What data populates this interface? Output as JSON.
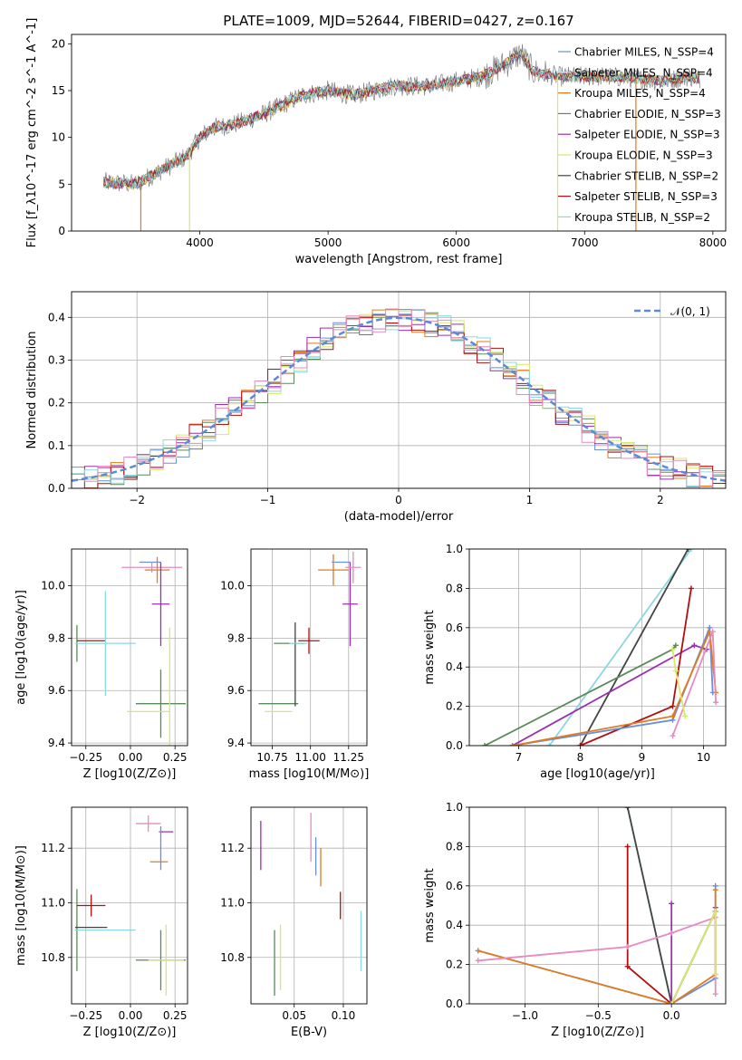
{
  "page_title": "PLATE=1009, MJD=52644, FIBERID=0427, z=0.167",
  "colors": {
    "Chabrier MILES": "#6a8fd8",
    "Salpeter MILES": "#e0e0e0",
    "Kroupa MILES": "#e07b1f",
    "Chabrier ELODIE": "#5a8a5a",
    "Salpeter ELODIE": "#9a2fb0",
    "Kroupa ELODIE": "#d8e86a",
    "Chabrier STELIB": "#444444",
    "Salpeter STELIB": "#b01010",
    "Kroupa STELIB": "#8ad8e0",
    "pink": "#e68ac0",
    "data": "#808080",
    "normal": "#5a8ad8"
  },
  "chart_data": [
    {
      "id": "spectrum",
      "type": "line",
      "title": "PLATE=1009, MJD=52644, FIBERID=0427, z=0.167",
      "xlabel": "wavelength [Angstrom, rest frame]",
      "ylabel": "Flux [f_λ10^-17 erg cm^-2 s^-1 A^-1]",
      "xlim": [
        3000,
        8100
      ],
      "ylim": [
        0,
        21
      ],
      "xticks": [
        "4000",
        "5000",
        "6000",
        "7000",
        "8000"
      ],
      "yticks": [
        "0",
        "5",
        "10",
        "15",
        "20"
      ],
      "legend_position": "right",
      "legend": [
        {
          "label": "Chabrier MILES, N_SSP=4",
          "color": "#6a8fd8"
        },
        {
          "label": "Salpeter MILES, N_SSP=4",
          "color": "#e0e0e0"
        },
        {
          "label": "Kroupa MILES, N_SSP=4",
          "color": "#e07b1f"
        },
        {
          "label": "Chabrier ELODIE, N_SSP=3",
          "color": "#5a8a5a"
        },
        {
          "label": "Salpeter ELODIE, N_SSP=3",
          "color": "#9a2fb0"
        },
        {
          "label": "Kroupa ELODIE, N_SSP=3",
          "color": "#d8e86a"
        },
        {
          "label": "Chabrier STELIB, N_SSP=2",
          "color": "#444444"
        },
        {
          "label": "Salpeter STELIB, N_SSP=3",
          "color": "#b01010"
        },
        {
          "label": "Kroupa STELIB, N_SSP=2",
          "color": "#8ad8e0"
        }
      ],
      "continuum": {
        "x": [
          3250,
          3500,
          3700,
          3900,
          4000,
          4100,
          4300,
          4500,
          4800,
          5000,
          5200,
          5500,
          5800,
          6000,
          6200,
          6400,
          6500,
          6600,
          6800,
          7000,
          7200,
          7400,
          7600,
          7800,
          7900
        ],
        "y": [
          5.2,
          5.0,
          6.5,
          8.0,
          10.0,
          11.0,
          11.5,
          12.5,
          14.5,
          15.0,
          14.5,
          15.5,
          15.5,
          16.0,
          16.5,
          18.0,
          19.0,
          17.0,
          16.5,
          16.5,
          16.5,
          16.3,
          16.0,
          16.5,
          16.3
        ]
      }
    },
    {
      "id": "residuals",
      "type": "bar",
      "xlabel": "(data-model)/error",
      "ylabel": "Normed distribution",
      "xlim": [
        -2.5,
        2.5
      ],
      "ylim": [
        0,
        0.46
      ],
      "xticks": [
        "-2",
        "-1",
        "0",
        "1",
        "2"
      ],
      "yticks": [
        "0.0",
        "0.1",
        "0.2",
        "0.3",
        "0.4"
      ],
      "legend_label": "𝒩(0, 1)",
      "legend_position": "top-right",
      "normal_curve": {
        "mean": 0,
        "sigma": 1
      },
      "series": [
        {
          "color": "#6a8fd8",
          "offset": 0.0
        },
        {
          "color": "#e07b1f",
          "offset": 0.02
        },
        {
          "color": "#5a8a5a",
          "offset": -0.02
        },
        {
          "color": "#9a2fb0",
          "offset": 0.03
        },
        {
          "color": "#d8e86a",
          "offset": -0.03
        },
        {
          "color": "#b01010",
          "offset": 0.015
        },
        {
          "color": "#8ad8e0",
          "offset": -0.015
        },
        {
          "color": "#e68ac0",
          "offset": 0.025
        }
      ]
    },
    {
      "id": "age-vs-Z",
      "type": "scatter",
      "xlabel": "Z [log10(Z/Z⊙)]",
      "ylabel": "age  [log10(age/yr)]",
      "xlim": [
        -0.33,
        0.32
      ],
      "ylim": [
        9.39,
        10.14
      ],
      "xticks": [
        "-0.25",
        "0.00",
        "0.25"
      ],
      "yticks": [
        "9.4",
        "9.6",
        "9.8",
        "10.0"
      ],
      "points": [
        {
          "x": -0.3,
          "y": 9.78,
          "xerr": 0.0,
          "yerr": 0.07,
          "color": "#5a8a5a"
        },
        {
          "x": -0.22,
          "y": 9.79,
          "xerr": 0.08,
          "yerr": 0.0,
          "color": "#b01010"
        },
        {
          "x": -0.14,
          "y": 9.78,
          "xerr": 0.17,
          "yerr": 0.2,
          "color": "#8ad8e0"
        },
        {
          "x": 0.11,
          "y": 10.09,
          "xerr": 0.06,
          "yerr": 0.0,
          "color": "#6a8fd8"
        },
        {
          "x": 0.12,
          "y": 10.07,
          "xerr": 0.17,
          "yerr": 0.02,
          "color": "#e68ac0"
        },
        {
          "x": 0.15,
          "y": 10.06,
          "xerr": 0.07,
          "yerr": 0.05,
          "color": "#e07b1f"
        },
        {
          "x": 0.17,
          "y": 9.93,
          "xerr": 0.05,
          "yerr": 0.16,
          "color": "#9a2fb0"
        },
        {
          "x": 0.17,
          "y": 9.55,
          "xerr": 0.14,
          "yerr": 0.13,
          "color": "#5a8a5a"
        },
        {
          "x": 0.1,
          "y": 9.52,
          "xerr": 0.12,
          "yerr": 0.0,
          "color": "#d8e86a"
        },
        {
          "x": 0.22,
          "y": 9.6,
          "xerr": 0.0,
          "yerr": 0.24,
          "color": "#d8e86a"
        }
      ]
    },
    {
      "id": "age-vs-mass",
      "type": "scatter",
      "xlabel": "mass [log10(M/M⊙)]",
      "ylabel": "",
      "xlim": [
        10.61,
        11.37
      ],
      "ylim": [
        9.39,
        10.14
      ],
      "xticks": [
        "10.75",
        "11.00",
        "11.25"
      ],
      "yticks": [
        "9.4",
        "9.6",
        "9.8",
        "10.0"
      ],
      "points": [
        {
          "x": 10.79,
          "y": 9.55,
          "xerr": 0.13,
          "yerr": 0.0,
          "color": "#5a8a5a"
        },
        {
          "x": 10.79,
          "y": 9.52,
          "xerr": 0.09,
          "yerr": 0.0,
          "color": "#d8e86a"
        },
        {
          "x": 10.86,
          "y": 9.78,
          "xerr": 0.1,
          "yerr": 0.0,
          "color": "#5a8a5a"
        },
        {
          "x": 10.9,
          "y": 9.7,
          "xerr": 0.0,
          "yerr": 0.16,
          "color": "#444444"
        },
        {
          "x": 10.92,
          "y": 9.78,
          "xerr": 0.06,
          "yerr": 0.0,
          "color": "#8ad8e0"
        },
        {
          "x": 10.99,
          "y": 9.79,
          "xerr": 0.07,
          "yerr": 0.05,
          "color": "#b01010"
        },
        {
          "x": 11.15,
          "y": 10.06,
          "xerr": 0.1,
          "yerr": 0.06,
          "color": "#e07b1f"
        },
        {
          "x": 11.2,
          "y": 10.09,
          "xerr": 0.06,
          "yerr": 0.0,
          "color": "#6a8fd8"
        },
        {
          "x": 11.26,
          "y": 9.93,
          "xerr": 0.05,
          "yerr": 0.16,
          "color": "#9a2fb0"
        },
        {
          "x": 11.28,
          "y": 10.07,
          "xerr": 0.05,
          "yerr": 0.06,
          "color": "#e68ac0"
        }
      ]
    },
    {
      "id": "weight-vs-age",
      "type": "line",
      "xlabel": "age  [log10(age/yr)]",
      "ylabel": "mass weight",
      "xlim": [
        6.2,
        10.36
      ],
      "ylim": [
        0,
        1.0
      ],
      "xticks": [
        "7",
        "8",
        "9",
        "10"
      ],
      "yticks": [
        "0.0",
        "0.2",
        "0.4",
        "0.6",
        "0.8",
        "1.0"
      ],
      "series": [
        {
          "color": "#8ad8e0",
          "x": [
            7.5,
            9.8
          ],
          "y": [
            0.0,
            1.0
          ]
        },
        {
          "color": "#444444",
          "x": [
            8.0,
            9.75
          ],
          "y": [
            0.0,
            1.0
          ]
        },
        {
          "color": "#5a8a5a",
          "x": [
            6.45,
            9.5,
            9.55
          ],
          "y": [
            0.0,
            0.49,
            0.51
          ]
        },
        {
          "color": "#9a2fb0",
          "x": [
            6.9,
            9.85,
            10.05
          ],
          "y": [
            0.0,
            0.51,
            0.49
          ]
        },
        {
          "color": "#b01010",
          "x": [
            8.0,
            9.5,
            9.8
          ],
          "y": [
            0.0,
            0.2,
            0.8
          ]
        },
        {
          "color": "#6a8fd8",
          "x": [
            6.9,
            9.5,
            10.1,
            10.15
          ],
          "y": [
            0.0,
            0.13,
            0.6,
            0.27
          ]
        },
        {
          "color": "#e07b1f",
          "x": [
            6.9,
            9.5,
            10.1,
            10.2
          ],
          "y": [
            0.0,
            0.15,
            0.58,
            0.27
          ]
        },
        {
          "color": "#e68ac0",
          "x": [
            9.5,
            10.15,
            10.2
          ],
          "y": [
            0.05,
            0.58,
            0.22
          ]
        },
        {
          "color": "#d8e86a",
          "x": [
            9.5,
            9.55,
            9.7
          ],
          "y": [
            0.49,
            0.38,
            0.15
          ]
        }
      ]
    },
    {
      "id": "mass-vs-Z",
      "type": "scatter",
      "xlabel": "Z [log10(Z/Z⊙)]",
      "ylabel": "mass [log10(M/M⊙)]",
      "xlim": [
        -0.33,
        0.32
      ],
      "ylim": [
        10.63,
        11.35
      ],
      "xticks": [
        "-0.25",
        "0.00",
        "0.25"
      ],
      "yticks": [
        "10.8",
        "11.0",
        "11.2"
      ],
      "points": [
        {
          "x": -0.3,
          "y": 10.9,
          "xerr": 0.0,
          "yerr": 0.15,
          "color": "#5a8a5a"
        },
        {
          "x": -0.22,
          "y": 10.99,
          "xerr": 0.08,
          "yerr": 0.04,
          "color": "#b01010"
        },
        {
          "x": -0.22,
          "y": 10.91,
          "xerr": 0.09,
          "yerr": 0.0,
          "color": "#444444"
        },
        {
          "x": -0.14,
          "y": 10.9,
          "xerr": 0.17,
          "yerr": 0.0,
          "color": "#8ad8e0"
        },
        {
          "x": 0.1,
          "y": 11.29,
          "xerr": 0.07,
          "yerr": 0.03,
          "color": "#e68ac0"
        },
        {
          "x": 0.16,
          "y": 11.15,
          "xerr": 0.05,
          "yerr": 0.0,
          "color": "#e07b1f"
        },
        {
          "x": 0.2,
          "y": 11.26,
          "xerr": 0.04,
          "yerr": 0.0,
          "color": "#9a2fb0"
        },
        {
          "x": 0.17,
          "y": 11.2,
          "xerr": 0.0,
          "yerr": 0.08,
          "color": "#6a8fd8"
        },
        {
          "x": 0.17,
          "y": 10.79,
          "xerr": 0.14,
          "yerr": 0.11,
          "color": "#5a8a5a"
        },
        {
          "x": 0.2,
          "y": 10.79,
          "xerr": 0.1,
          "yerr": 0.13,
          "color": "#d8e86a"
        }
      ]
    },
    {
      "id": "mass-vs-EBV",
      "type": "scatter",
      "xlabel": "E(B-V)",
      "ylabel": "",
      "xlim": [
        0.006,
        0.124
      ],
      "ylim": [
        10.63,
        11.35
      ],
      "xticks": [
        "0.05",
        "0.10"
      ],
      "yticks": [
        "10.8",
        "11.0",
        "11.2"
      ],
      "points": [
        {
          "x": 0.016,
          "y": 11.21,
          "yerr": 0.09,
          "color": "#9a2fb0"
        },
        {
          "x": 0.03,
          "y": 10.78,
          "yerr": 0.12,
          "color": "#5a8a5a"
        },
        {
          "x": 0.036,
          "y": 10.8,
          "yerr": 0.12,
          "color": "#d8e86a"
        },
        {
          "x": 0.067,
          "y": 11.24,
          "yerr": 0.09,
          "color": "#e68ac0"
        },
        {
          "x": 0.072,
          "y": 11.17,
          "yerr": 0.07,
          "color": "#6a8fd8"
        },
        {
          "x": 0.077,
          "y": 11.13,
          "yerr": 0.07,
          "color": "#e07b1f"
        },
        {
          "x": 0.097,
          "y": 10.99,
          "yerr": 0.05,
          "color": "#b01010"
        },
        {
          "x": 0.118,
          "y": 10.86,
          "yerr": 0.11,
          "color": "#8ad8e0"
        }
      ]
    },
    {
      "id": "weight-vs-Z",
      "type": "line",
      "xlabel": "Z [log10(Z/Z⊙)]",
      "ylabel": "mass weight",
      "xlim": [
        -1.38,
        0.37
      ],
      "ylim": [
        0,
        1.0
      ],
      "xticks": [
        "-1.0",
        "-0.5",
        "0.0"
      ],
      "yticks": [
        "0.0",
        "0.2",
        "0.4",
        "0.6",
        "0.8",
        "1.0"
      ],
      "series": [
        {
          "color": "#8ad8e0",
          "x": [
            -0.3,
            0.0
          ],
          "y": [
            1.0,
            0.0
          ]
        },
        {
          "color": "#444444",
          "x": [
            -0.3,
            0.0
          ],
          "y": [
            1.0,
            0.0
          ]
        },
        {
          "color": "#b01010",
          "x": [
            -0.3,
            -0.3,
            0.0
          ],
          "y": [
            0.8,
            0.19,
            0.0
          ]
        },
        {
          "color": "#9a2fb0",
          "x": [
            0.0,
            0.0,
            0.3,
            0.3
          ],
          "y": [
            0.51,
            0.0,
            0.47,
            0.49
          ]
        },
        {
          "color": "#5a8a5a",
          "x": [
            0.0,
            0.3
          ],
          "y": [
            0.0,
            0.47
          ]
        },
        {
          "color": "#6a8fd8",
          "x": [
            -1.32,
            0.0,
            0.3,
            0.3
          ],
          "y": [
            0.27,
            0.0,
            0.13,
            0.6
          ]
        },
        {
          "color": "#e07b1f",
          "x": [
            -1.32,
            0.0,
            0.3,
            0.3
          ],
          "y": [
            0.27,
            0.0,
            0.15,
            0.58
          ]
        },
        {
          "color": "#e68ac0",
          "x": [
            -1.32,
            -0.3,
            0.0,
            0.3,
            0.3
          ],
          "y": [
            0.22,
            0.29,
            0.36,
            0.44,
            0.05
          ]
        },
        {
          "color": "#d8e86a",
          "x": [
            0.0,
            0.3,
            0.3
          ],
          "y": [
            0.0,
            0.47,
            0.15
          ]
        }
      ]
    }
  ]
}
